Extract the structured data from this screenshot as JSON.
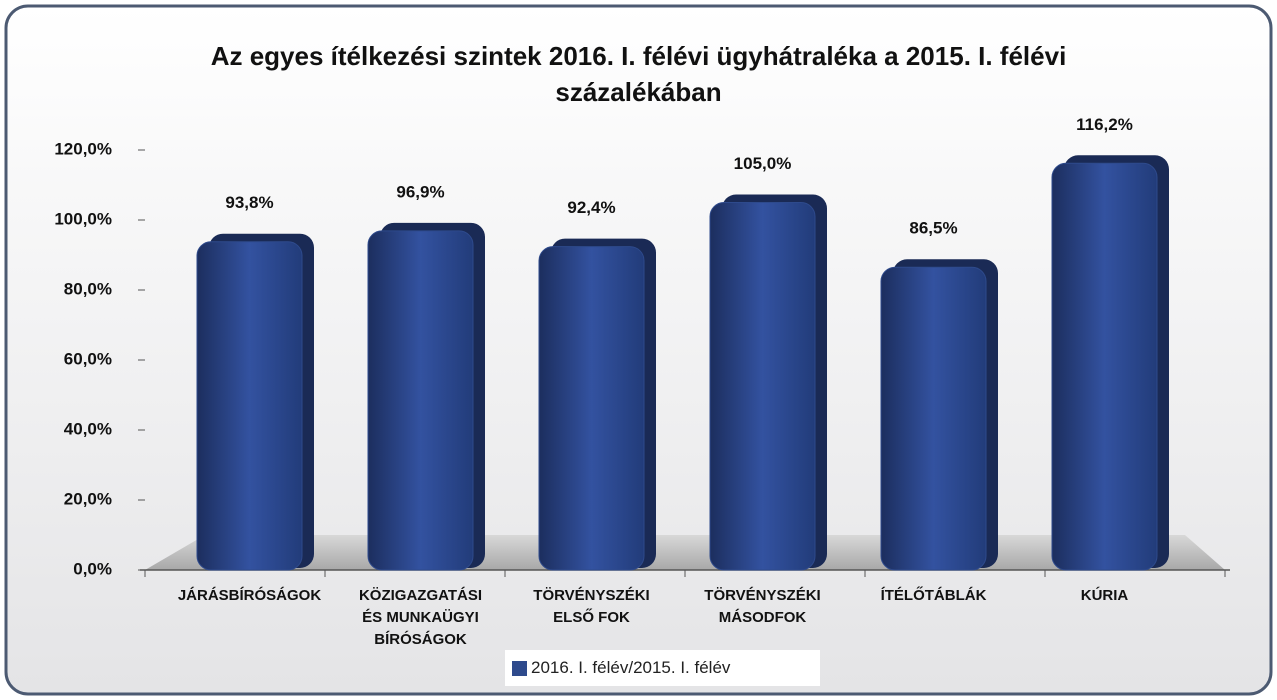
{
  "chart_data": {
    "type": "bar",
    "title": "Az egyes ítélkezési szintek 2016. I. félévi ügyhátraléka a 2015. I. félévi\nszázalékában",
    "categories": [
      "JÁRÁSBÍRÓSÁGOK",
      "KÖZIGAZGATÁSI\nÉS MUNKAÜGYI\nBÍRÓSÁGOK",
      "TÖRVÉNYSZÉKI\nELSŐ FOK",
      "TÖRVÉNYSZÉKI\nMÁSODFOK",
      "ÍTÉLŐTÁBLÁK",
      "KÚRIA"
    ],
    "series": [
      {
        "name": "2016. I. félév/2015. I. félév",
        "color": "#2e4a8c",
        "values": [
          93.8,
          96.9,
          92.4,
          105.0,
          86.5,
          116.2
        ],
        "value_labels": [
          "93,8%",
          "96,9%",
          "92,4%",
          "105,0%",
          "86,5%",
          "116,2%"
        ]
      }
    ],
    "ylim": [
      0,
      120
    ],
    "yticks": [
      {
        "value": 0,
        "label": "0,0%"
      },
      {
        "value": 20,
        "label": "20,0%"
      },
      {
        "value": 40,
        "label": "40,0%"
      },
      {
        "value": 60,
        "label": "60,0%"
      },
      {
        "value": 80,
        "label": "80,0%"
      },
      {
        "value": 100,
        "label": "100,0%"
      },
      {
        "value": 120,
        "label": "120,0%"
      }
    ],
    "grid": false
  }
}
